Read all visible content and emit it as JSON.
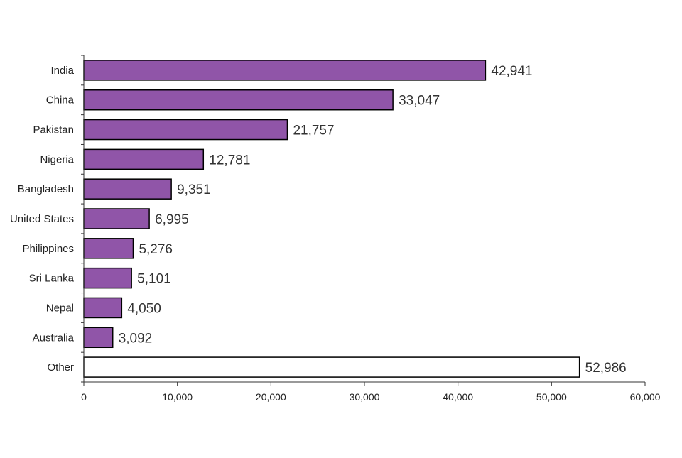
{
  "chart_data": {
    "type": "bar",
    "orientation": "horizontal",
    "title": "",
    "xlabel": "",
    "ylabel": "",
    "categories": [
      "India",
      "China",
      "Pakistan",
      "Nigeria",
      "Bangladesh",
      "United States",
      "Philippines",
      "Sri Lanka",
      "Nepal",
      "Australia",
      "Other"
    ],
    "values": [
      42941,
      33047,
      21757,
      12781,
      9351,
      6995,
      5276,
      5101,
      4050,
      3092,
      52986
    ],
    "value_labels": [
      "42,941",
      "33,047",
      "21,757",
      "12,781",
      "9,351",
      "6,995",
      "5,276",
      "5,101",
      "4,050",
      "3,092",
      "52,986"
    ],
    "xlim": [
      0,
      60000
    ],
    "xticks": [
      0,
      10000,
      20000,
      30000,
      40000,
      50000,
      60000
    ],
    "xtick_labels": [
      "0",
      "10,000",
      "20,000",
      "30,000",
      "40,000",
      "50,000",
      "60,000"
    ],
    "grid": false,
    "legend": "none",
    "colors": {
      "bar_fill": "#9055a8",
      "bar_fill_other": "#ffffff",
      "bar_stroke": "#000000",
      "axis": "#333333"
    }
  }
}
